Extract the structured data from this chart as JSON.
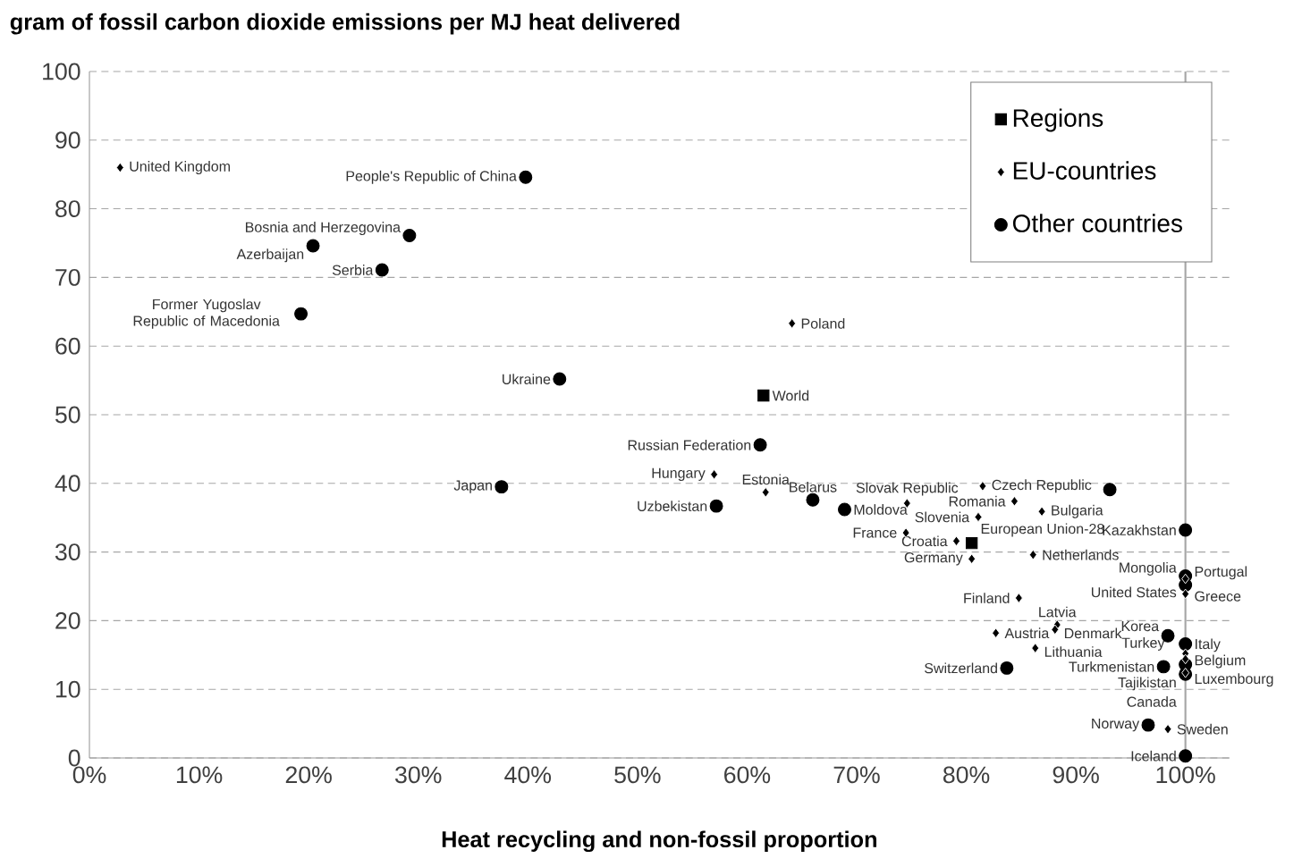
{
  "chart_data": {
    "type": "scatter",
    "ylabel": "gram of fossil carbon dioxide emissions per MJ heat delivered",
    "xlabel": "Heat recycling and non-fossil proportion",
    "xlim": [
      0,
      104
    ],
    "ylim": [
      0,
      100
    ],
    "xticks": [
      {
        "value": 0,
        "label": "0%"
      },
      {
        "value": 10,
        "label": "10%"
      },
      {
        "value": 20,
        "label": "20%"
      },
      {
        "value": 30,
        "label": "30%"
      },
      {
        "value": 40,
        "label": "40%"
      },
      {
        "value": 50,
        "label": "50%"
      },
      {
        "value": 60,
        "label": "60%"
      },
      {
        "value": 70,
        "label": "70%"
      },
      {
        "value": 80,
        "label": "80%"
      },
      {
        "value": 90,
        "label": "90%"
      },
      {
        "value": 100,
        "label": "100%"
      }
    ],
    "yticks": [
      0,
      10,
      20,
      30,
      40,
      50,
      60,
      70,
      80,
      90,
      100
    ],
    "grid": "y",
    "legend": "top right",
    "ref_lines": [
      {
        "axis": "x",
        "value": 100,
        "color": "#a6a6a6"
      }
    ],
    "series": [
      {
        "name": "Regions",
        "marker": "square",
        "color": "#000000",
        "x": [
          61.5,
          80.5
        ],
        "values": [
          52.8,
          31.3
        ]
      },
      {
        "name": "EU-countries",
        "marker": "diamond",
        "color": "#000000",
        "x": [
          2.8,
          64.1,
          57.0,
          61.7,
          74.6,
          74.5,
          81.5,
          84.4,
          81.1,
          86.9,
          79.1,
          80.5,
          86.1,
          100,
          100,
          84.8,
          88.3,
          82.7,
          88.1,
          86.3,
          100,
          100,
          100,
          98.4
        ],
        "values": [
          86.0,
          63.3,
          41.3,
          38.7,
          37.1,
          32.8,
          39.6,
          37.4,
          35.1,
          35.9,
          31.6,
          29.0,
          29.6,
          26.1,
          23.9,
          23.3,
          19.4,
          18.2,
          18.7,
          16.0,
          15.2,
          14.4,
          12.4,
          4.2
        ]
      },
      {
        "name": "Other countries",
        "marker": "circle",
        "color": "#000000",
        "x": [
          39.8,
          29.2,
          20.4,
          26.7,
          19.3,
          42.9,
          37.6,
          61.2,
          57.2,
          66.0,
          68.9,
          100,
          100,
          100,
          98.4,
          100,
          98.0,
          100,
          100,
          83.7,
          96.6,
          100,
          93.1
        ],
        "values": [
          84.6,
          76.1,
          74.6,
          71.1,
          64.7,
          55.2,
          39.5,
          45.6,
          36.7,
          37.6,
          36.2,
          33.2,
          26.5,
          25.2,
          17.8,
          16.6,
          13.3,
          13.6,
          12.2,
          13.1,
          4.8,
          0.3,
          39.1
        ]
      }
    ],
    "annotations": [
      {
        "text": "World",
        "x": 61.5,
        "y": 52.8
      },
      {
        "text": "European Union-28",
        "x": 80.5,
        "y": 31.3
      },
      {
        "text": "United Kingdom",
        "x": 2.8,
        "y": 86.0
      },
      {
        "text": "Poland",
        "x": 64.1,
        "y": 63.3
      },
      {
        "text": "Hungary",
        "x": 57.0,
        "y": 41.3
      },
      {
        "text": "Estonia",
        "x": 61.7,
        "y": 38.7
      },
      {
        "text": "Slovak Republic",
        "x": 74.6,
        "y": 37.1
      },
      {
        "text": "France",
        "x": 74.5,
        "y": 32.8
      },
      {
        "text": "Czech Republic",
        "x": 81.5,
        "y": 39.6
      },
      {
        "text": "Romania",
        "x": 84.4,
        "y": 37.4
      },
      {
        "text": "Slovenia",
        "x": 81.1,
        "y": 35.1
      },
      {
        "text": "Bulgaria",
        "x": 86.9,
        "y": 35.9
      },
      {
        "text": "Croatia",
        "x": 79.1,
        "y": 31.6
      },
      {
        "text": "Germany",
        "x": 80.5,
        "y": 29.0
      },
      {
        "text": "Netherlands",
        "x": 86.1,
        "y": 29.6
      },
      {
        "text": "Portugal",
        "x": 100,
        "y": 26.1
      },
      {
        "text": "Greece",
        "x": 100,
        "y": 23.9
      },
      {
        "text": "Finland",
        "x": 84.8,
        "y": 23.3
      },
      {
        "text": "Latvia",
        "x": 88.3,
        "y": 19.4
      },
      {
        "text": "Austria",
        "x": 82.7,
        "y": 18.2
      },
      {
        "text": "Denmark",
        "x": 88.1,
        "y": 18.7
      },
      {
        "text": "Lithuania",
        "x": 86.3,
        "y": 16.0
      },
      {
        "text": "Italy",
        "x": 100,
        "y": 15.2
      },
      {
        "text": "Belgium",
        "x": 100,
        "y": 14.4
      },
      {
        "text": "Luxembourg",
        "x": 100,
        "y": 12.4
      },
      {
        "text": "Sweden",
        "x": 98.4,
        "y": 4.2
      },
      {
        "text": "People's Republic of China",
        "x": 39.8,
        "y": 84.6
      },
      {
        "text": "Bosnia and Herzegovina",
        "x": 29.2,
        "y": 76.1
      },
      {
        "text": "Azerbaijan",
        "x": 20.4,
        "y": 74.6
      },
      {
        "text": "Serbia",
        "x": 26.7,
        "y": 71.1
      },
      {
        "text": "Former Yugoslav Republic of Macedonia",
        "x": 19.3,
        "y": 64.7
      },
      {
        "text": "Ukraine",
        "x": 42.9,
        "y": 55.2
      },
      {
        "text": "Japan",
        "x": 37.6,
        "y": 39.5
      },
      {
        "text": "Russian Federation",
        "x": 61.2,
        "y": 45.6
      },
      {
        "text": "Uzbekistan",
        "x": 57.2,
        "y": 36.7
      },
      {
        "text": "Belarus",
        "x": 66.0,
        "y": 37.6
      },
      {
        "text": "Moldova",
        "x": 68.9,
        "y": 36.2
      },
      {
        "text": "Kazakhstan",
        "x": 100,
        "y": 33.2
      },
      {
        "text": "Mongolia",
        "x": 100,
        "y": 26.5
      },
      {
        "text": "United States",
        "x": 100,
        "y": 25.2
      },
      {
        "text": "Korea",
        "x": 98.4,
        "y": 17.8
      },
      {
        "text": "Turkey",
        "x": 100,
        "y": 16.6
      },
      {
        "text": "Turkmenistan",
        "x": 98.0,
        "y": 13.3
      },
      {
        "text": "Tajikistan",
        "x": 100,
        "y": 13.6
      },
      {
        "text": "Canada",
        "x": 100,
        "y": 12.2
      },
      {
        "text": "Switzerland",
        "x": 83.7,
        "y": 13.1
      },
      {
        "text": "Norway",
        "x": 96.6,
        "y": 4.8
      },
      {
        "text": "Iceland",
        "x": 100,
        "y": 0.3
      }
    ]
  }
}
